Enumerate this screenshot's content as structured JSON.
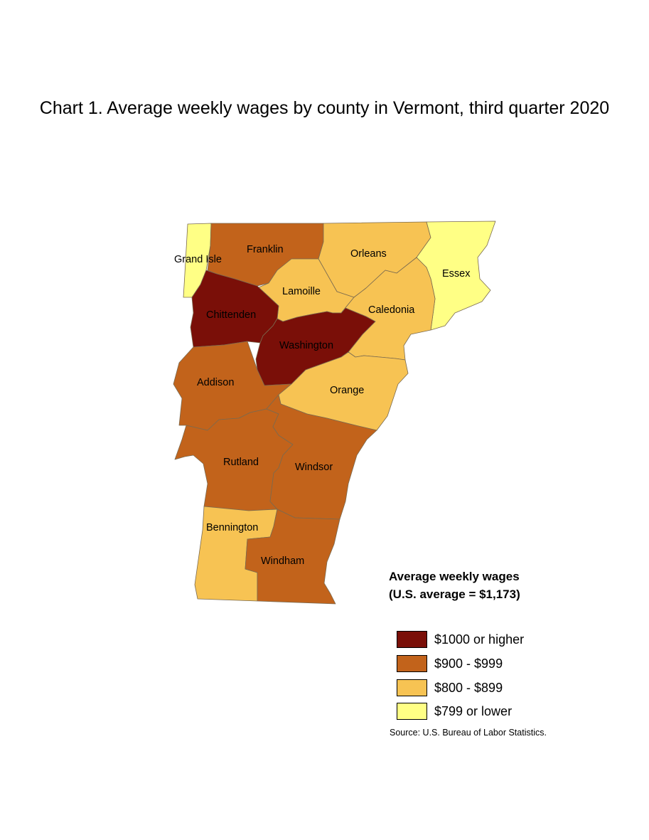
{
  "title": "Chart 1. Average weekly wages by county in Vermont, third quarter 2020",
  "legend": {
    "title_line1": "Average weekly wages",
    "title_line2": "(U.S. average = $1,173)",
    "items": [
      {
        "label": "$1000 or higher",
        "color": "#7a0f08"
      },
      {
        "label": "$900 - $999",
        "color": "#c2631b"
      },
      {
        "label": "$800 - $899",
        "color": "#f7c353"
      },
      {
        "label": "$799 or lower",
        "color": "#ffff85"
      }
    ]
  },
  "counties": [
    {
      "name": "Grand Isle",
      "category": "$799 or lower",
      "color": "#ffff85"
    },
    {
      "name": "Franklin",
      "category": "$900 - $999",
      "color": "#c2631b"
    },
    {
      "name": "Orleans",
      "category": "$800 - $899",
      "color": "#f7c353"
    },
    {
      "name": "Essex",
      "category": "$799 or lower",
      "color": "#ffff85"
    },
    {
      "name": "Lamoille",
      "category": "$800 - $899",
      "color": "#f7c353"
    },
    {
      "name": "Chittenden",
      "category": "$1000 or higher",
      "color": "#7a0f08"
    },
    {
      "name": "Caledonia",
      "category": "$800 - $899",
      "color": "#f7c353"
    },
    {
      "name": "Washington",
      "category": "$1000 or higher",
      "color": "#7a0f08"
    },
    {
      "name": "Addison",
      "category": "$900 - $999",
      "color": "#c2631b"
    },
    {
      "name": "Orange",
      "category": "$800 - $899",
      "color": "#f7c353"
    },
    {
      "name": "Rutland",
      "category": "$900 - $999",
      "color": "#c2631b"
    },
    {
      "name": "Windsor",
      "category": "$900 - $999",
      "color": "#c2631b"
    },
    {
      "name": "Bennington",
      "category": "$800 - $899",
      "color": "#f7c353"
    },
    {
      "name": "Windham",
      "category": "$900 - $999",
      "color": "#c2631b"
    }
  ],
  "source": "Source: U.S. Bureau of Labor Statistics."
}
